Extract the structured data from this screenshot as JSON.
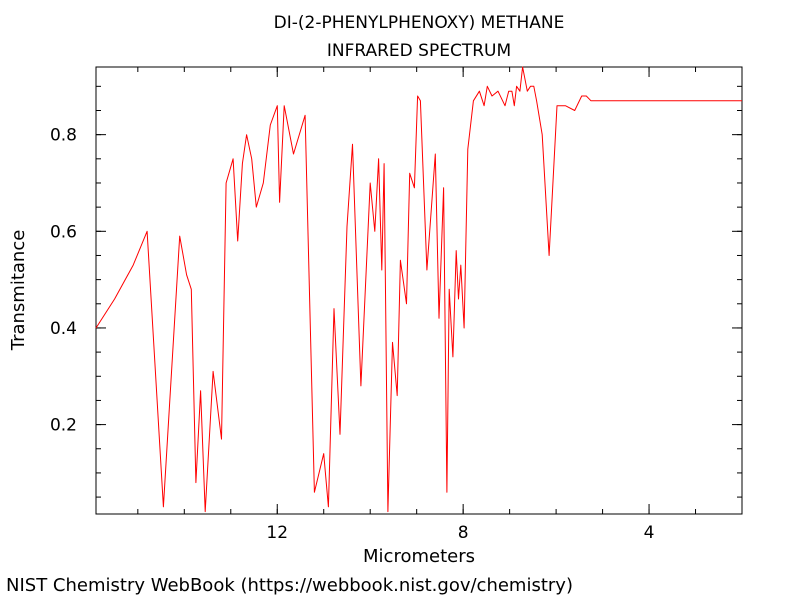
{
  "chart_data": {
    "type": "line",
    "title": [
      "DI-(2-PHENYLPHENOXY) METHANE",
      "INFRARED SPECTRUM"
    ],
    "xlabel": "Micrometers",
    "ylabel": "Transmitance",
    "xlim": [
      15.9,
      2.0
    ],
    "ylim": [
      0.015,
      0.94
    ],
    "x_ticks": [
      12,
      8,
      4
    ],
    "x_tick_labels": [
      "12",
      "8",
      "4"
    ],
    "y_ticks": [
      0.2,
      0.4,
      0.6,
      0.8
    ],
    "y_tick_labels": [
      "0.2",
      "0.4",
      "0.6",
      "0.8"
    ],
    "grid": false,
    "series": [
      {
        "color": "#ff0000",
        "x": [
          15.9,
          15.5,
          15.1,
          14.8,
          14.45,
          14.1,
          13.95,
          13.85,
          13.75,
          13.65,
          13.55,
          13.38,
          13.2,
          13.1,
          12.95,
          12.85,
          12.75,
          12.66,
          12.55,
          12.45,
          12.3,
          12.15,
          12.0,
          11.95,
          11.85,
          11.65,
          11.4,
          11.2,
          11.0,
          10.9,
          10.78,
          10.65,
          10.5,
          10.38,
          10.2,
          10.0,
          9.9,
          9.82,
          9.75,
          9.7,
          9.62,
          9.52,
          9.42,
          9.35,
          9.22,
          9.15,
          9.05,
          8.98,
          8.92,
          8.78,
          8.6,
          8.52,
          8.42,
          8.35,
          8.3,
          8.22,
          8.15,
          8.1,
          8.05,
          7.98,
          7.9,
          7.78,
          7.65,
          7.55,
          7.48,
          7.38,
          7.25,
          7.1,
          7.02,
          6.95,
          6.9,
          6.85,
          6.78,
          6.72,
          6.68,
          6.62,
          6.55,
          6.48,
          6.42,
          6.3,
          6.15,
          5.98,
          5.8,
          5.6,
          5.45,
          5.35,
          5.25,
          5.12,
          4.9,
          4.7,
          4.5,
          4.2,
          3.85,
          3.62,
          3.5,
          3.4,
          3.3,
          3.2,
          3.05,
          2.9,
          2.75,
          2.55,
          2.35,
          2.15,
          2.0
        ],
        "y": [
          0.4,
          0.46,
          0.53,
          0.6,
          0.03,
          0.59,
          0.51,
          0.48,
          0.08,
          0.27,
          0.02,
          0.31,
          0.17,
          0.7,
          0.75,
          0.58,
          0.74,
          0.8,
          0.75,
          0.65,
          0.7,
          0.82,
          0.86,
          0.66,
          0.86,
          0.76,
          0.84,
          0.06,
          0.14,
          0.03,
          0.44,
          0.18,
          0.61,
          0.78,
          0.28,
          0.7,
          0.6,
          0.75,
          0.52,
          0.74,
          0.02,
          0.37,
          0.26,
          0.54,
          0.45,
          0.72,
          0.69,
          0.88,
          0.87,
          0.52,
          0.76,
          0.42,
          0.69,
          0.06,
          0.48,
          0.34,
          0.56,
          0.46,
          0.53,
          0.4,
          0.77,
          0.87,
          0.89,
          0.86,
          0.9,
          0.88,
          0.89,
          0.86,
          0.89,
          0.89,
          0.86,
          0.9,
          0.89,
          0.94,
          0.92,
          0.89,
          0.9,
          0.9,
          0.87,
          0.8,
          0.55,
          0.86,
          0.86,
          0.85,
          0.88,
          0.88,
          0.87,
          0.87,
          0.87,
          0.87,
          0.87,
          0.87,
          0.87,
          0.87,
          0.87,
          0.87,
          0.87,
          0.87,
          0.87,
          0.87,
          0.87,
          0.87,
          0.87,
          0.87,
          0.87
        ]
      }
    ]
  },
  "footer": "NIST Chemistry WebBook (https://webbook.nist.gov/chemistry)"
}
